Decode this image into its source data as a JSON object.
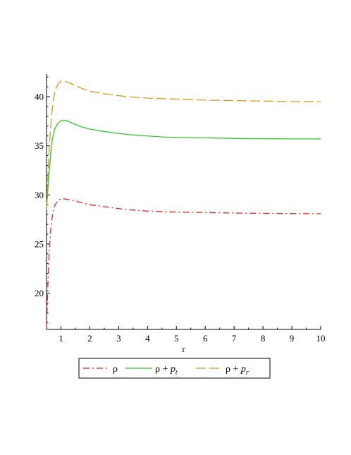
{
  "chart_data": {
    "type": "line",
    "xlabel": "r",
    "ylabel": "",
    "title": "",
    "xlim": [
      0.5,
      10
    ],
    "ylim": [
      16.3,
      42.3
    ],
    "xticks": [
      1,
      2,
      3,
      4,
      5,
      6,
      7,
      8,
      9,
      10
    ],
    "yticks": [
      20,
      25,
      30,
      35,
      40
    ],
    "grid": false,
    "legend_position": "bottom",
    "series": [
      {
        "name": "ρ",
        "legend_base": "ρ",
        "legend_sub": "",
        "color": "#e8211d",
        "dash": "dash-dot",
        "x": [
          0.5,
          0.55,
          0.6,
          0.65,
          0.7,
          0.75,
          0.8,
          0.9,
          1.0,
          1.1,
          1.2,
          1.4,
          1.6,
          1.8,
          2.0,
          2.5,
          3.0,
          3.5,
          4.0,
          4.5,
          5.0,
          6.0,
          7.0,
          8.0,
          9.0,
          10.0
        ],
        "y": [
          16.5,
          21.0,
          24.5,
          26.6,
          27.8,
          28.5,
          29.0,
          29.4,
          29.6,
          29.6,
          29.55,
          29.45,
          29.3,
          29.15,
          29.0,
          28.8,
          28.6,
          28.45,
          28.35,
          28.3,
          28.25,
          28.2,
          28.15,
          28.12,
          28.1,
          28.08
        ]
      },
      {
        "name": "ρ + p_t",
        "legend_base": "ρ + ",
        "legend_sub": "t",
        "color": "#2fcb26",
        "dash": "solid",
        "x": [
          0.5,
          0.55,
          0.6,
          0.65,
          0.7,
          0.75,
          0.8,
          0.9,
          1.0,
          1.1,
          1.2,
          1.4,
          1.6,
          1.8,
          2.0,
          2.5,
          3.0,
          3.5,
          4.0,
          4.5,
          5.0,
          6.0,
          7.0,
          8.0,
          9.0,
          10.0
        ],
        "y": [
          28.5,
          30.7,
          32.6,
          34.4,
          35.6,
          36.3,
          36.8,
          37.3,
          37.55,
          37.6,
          37.55,
          37.3,
          37.05,
          36.85,
          36.7,
          36.45,
          36.25,
          36.1,
          36.0,
          35.9,
          35.85,
          35.8,
          35.75,
          35.72,
          35.7,
          35.7
        ]
      },
      {
        "name": "ρ + p_r",
        "legend_base": "ρ + ",
        "legend_sub": "r",
        "color": "#d69a15",
        "dash": "dashed",
        "x": [
          0.5,
          0.55,
          0.6,
          0.65,
          0.7,
          0.75,
          0.8,
          0.9,
          1.0,
          1.1,
          1.2,
          1.4,
          1.6,
          1.8,
          2.0,
          2.5,
          3.0,
          3.5,
          4.0,
          4.5,
          5.0,
          6.0,
          7.0,
          8.0,
          9.0,
          10.0
        ],
        "y": [
          28.6,
          32.0,
          35.0,
          37.2,
          38.8,
          39.9,
          40.6,
          41.3,
          41.6,
          41.6,
          41.5,
          41.25,
          41.0,
          40.75,
          40.55,
          40.3,
          40.1,
          39.95,
          39.85,
          39.8,
          39.75,
          39.65,
          39.6,
          39.55,
          39.5,
          39.48
        ]
      }
    ]
  }
}
